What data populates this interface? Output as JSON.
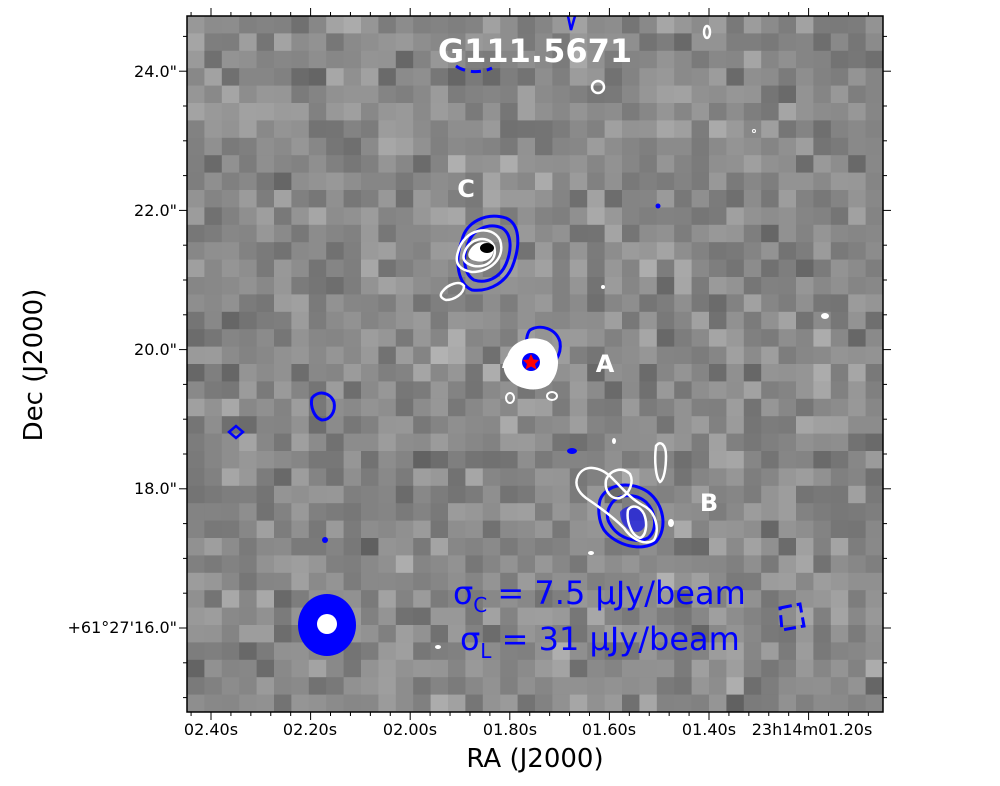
{
  "chart_data": {
    "type": "image",
    "title": "G111.5671",
    "xlabel": "RA (J2000)",
    "ylabel": "Dec (J2000)",
    "x_tick_labels": [
      "02.40s",
      "02.20s",
      "02.00s",
      "01.80s",
      "01.60s",
      "01.40s",
      "23h14m01.20s"
    ],
    "y_tick_labels": [
      "+61°27'16.0\"",
      "18.0\"",
      "20.0\"",
      "22.0\"",
      "24.0\""
    ],
    "sources": [
      {
        "label": "A"
      },
      {
        "label": "B"
      },
      {
        "label": "C"
      }
    ],
    "noise_annotations": [
      "σ_C = 7.5 μJy/beam",
      "σ_L = 31 μJy/beam"
    ],
    "noise_text": {
      "c_sigma": "σ",
      "c_sub": "C",
      "c_value": " = 7.5 μJy/beam",
      "l_sigma": "σ",
      "l_sub": "L",
      "l_value": " = 31 μJy/beam"
    },
    "colors": {
      "contour_c_band": "#0000ff",
      "contour_l_band": "#ffffff",
      "star_marker": "#ff0000",
      "background": "grayscale"
    }
  }
}
